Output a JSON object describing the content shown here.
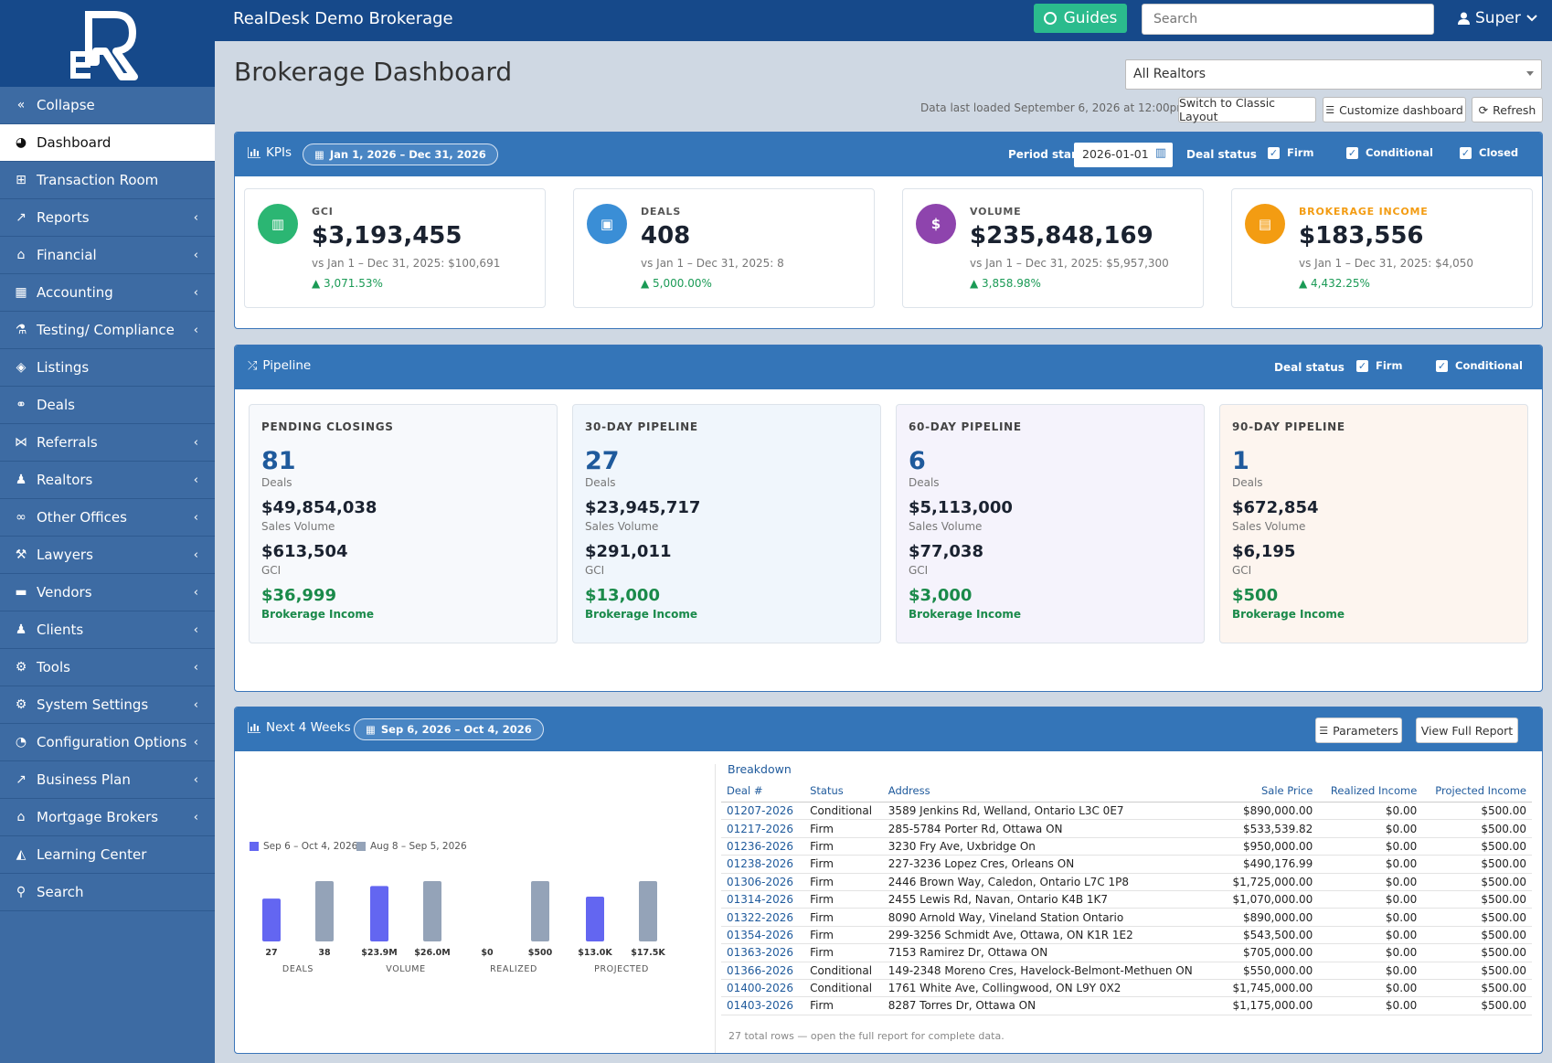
{
  "app": {
    "brand": "RealDesk Demo Brokerage",
    "guides_label": "Guides",
    "search_placeholder": "Search",
    "user_name": "Super"
  },
  "sidebar": {
    "items": [
      {
        "label": "Collapse",
        "icon": "double-chevron-left-icon",
        "chevron": false
      },
      {
        "label": "Dashboard",
        "icon": "dashboard-gauge-icon",
        "chevron": false,
        "active": true
      },
      {
        "label": "Transaction Room",
        "icon": "sitemap-icon",
        "chevron": false
      },
      {
        "label": "Reports",
        "icon": "line-chart-icon",
        "chevron": true
      },
      {
        "label": "Financial",
        "icon": "bank-icon",
        "chevron": true
      },
      {
        "label": "Accounting",
        "icon": "calculator-icon",
        "chevron": true
      },
      {
        "label": "Testing/ Compliance",
        "icon": "flask-icon",
        "chevron": true
      },
      {
        "label": "Listings",
        "icon": "tags-icon",
        "chevron": false
      },
      {
        "label": "Deals",
        "icon": "handshake-icon",
        "chevron": false
      },
      {
        "label": "Referrals",
        "icon": "share-icon",
        "chevron": true
      },
      {
        "label": "Realtors",
        "icon": "users-icon",
        "chevron": true
      },
      {
        "label": "Other Offices",
        "icon": "link-icon",
        "chevron": true
      },
      {
        "label": "Lawyers",
        "icon": "gavel-icon",
        "chevron": true
      },
      {
        "label": "Vendors",
        "icon": "truck-icon",
        "chevron": true
      },
      {
        "label": "Clients",
        "icon": "users-icon",
        "chevron": true
      },
      {
        "label": "Tools",
        "icon": "wrench-icon",
        "chevron": true
      },
      {
        "label": "System Settings",
        "icon": "gear-icon",
        "chevron": true
      },
      {
        "label": "Configuration Options",
        "icon": "dial-icon",
        "chevron": true
      },
      {
        "label": "Business Plan",
        "icon": "line-chart-icon",
        "chevron": true
      },
      {
        "label": "Mortgage Brokers",
        "icon": "bank-icon",
        "chevron": true
      },
      {
        "label": "Learning Center",
        "icon": "graduation-cap-icon",
        "chevron": false
      },
      {
        "label": "Search",
        "icon": "search-icon",
        "chevron": false
      }
    ]
  },
  "header": {
    "title": "Brokerage Dashboard",
    "realtor_filter": "All Realtors",
    "last_loaded": "Data last loaded September 6, 2026 at 12:00pm",
    "switch_label": "Switch to Classic Layout",
    "customize_label": "Customize dashboard",
    "refresh_label": "Refresh"
  },
  "kpis": {
    "title": "KPIs",
    "range": "Jan 1, 2026 – Dec 31, 2026",
    "period_start_label": "Period start",
    "period_start_value": "2026-01-01",
    "deal_status_label": "Deal status",
    "statuses": [
      "Firm",
      "Conditional",
      "Closed"
    ],
    "cards": [
      {
        "label": "GCI",
        "value": "$3,193,455",
        "comparison": "vs Jan 1 – Dec 31, 2025: $100,691",
        "change": "▲ 3,071.53%",
        "color": "#2bb673",
        "icon": "bar-chart-icon"
      },
      {
        "label": "DEALS",
        "value": "408",
        "comparison": "vs Jan 1 – Dec 31, 2025: 8",
        "change": "▲ 5,000.00%",
        "color": "#3a8ed6",
        "icon": "briefcase-icon"
      },
      {
        "label": "VOLUME",
        "value": "$235,848,169",
        "comparison": "vs Jan 1 – Dec 31, 2025: $5,957,300",
        "change": "▲ 3,858.98%",
        "color": "#8e44ad",
        "icon": "dollar-icon"
      },
      {
        "label": "BROKERAGE INCOME",
        "value": "$183,556",
        "comparison": "vs Jan 1 – Dec 31, 2025: $4,050",
        "change": "▲ 4,432.25%",
        "color": "#f39c12",
        "icon": "building-icon"
      }
    ]
  },
  "pipeline": {
    "title": "Pipeline",
    "deal_status_label": "Deal status",
    "statuses": [
      "Firm",
      "Conditional"
    ],
    "deals_label": "Deals",
    "volume_label": "Sales Volume",
    "gci_label": "GCI",
    "income_label": "Brokerage Income",
    "cards": [
      {
        "label": "PENDING CLOSINGS",
        "deals": "81",
        "volume": "$49,854,038",
        "gci": "$613,504",
        "income": "$36,999",
        "bg": "#f7f9fc"
      },
      {
        "label": "30-DAY PIPELINE",
        "deals": "27",
        "volume": "$23,945,717",
        "gci": "$291,011",
        "income": "$13,000",
        "bg": "#f0f6fc"
      },
      {
        "label": "60-DAY PIPELINE",
        "deals": "6",
        "volume": "$5,113,000",
        "gci": "$77,038",
        "income": "$3,000",
        "bg": "#f5f3fc"
      },
      {
        "label": "90-DAY PIPELINE",
        "deals": "1",
        "volume": "$672,854",
        "gci": "$6,195",
        "income": "$500",
        "bg": "#fdf5ef"
      }
    ]
  },
  "weeks": {
    "title": "Next 4 Weeks",
    "range": "Sep 6, 2026 – Oct 4, 2026",
    "parameters_label": "Parameters",
    "full_report_label": "View Full Report",
    "breakdown_title": "Breakdown",
    "columns": [
      "Deal #",
      "Status",
      "Address",
      "Sale Price",
      "Realized Income",
      "Projected Income"
    ],
    "rows": [
      [
        "01207-2026",
        "Conditional",
        "3589 Jenkins Rd, Welland, Ontario L3C 0E7",
        "$890,000.00",
        "$0.00",
        "$500.00"
      ],
      [
        "01217-2026",
        "Firm",
        "285-5784 Porter Rd, Ottawa ON",
        "$533,539.82",
        "$0.00",
        "$500.00"
      ],
      [
        "01236-2026",
        "Firm",
        "3230 Fry Ave, Uxbridge On",
        "$950,000.00",
        "$0.00",
        "$500.00"
      ],
      [
        "01238-2026",
        "Firm",
        "227-3236 Lopez Cres, Orleans ON",
        "$490,176.99",
        "$0.00",
        "$500.00"
      ],
      [
        "01306-2026",
        "Firm",
        "2446 Brown Way, Caledon, Ontario L7C 1P8",
        "$1,725,000.00",
        "$0.00",
        "$500.00"
      ],
      [
        "01314-2026",
        "Firm",
        "2455 Lewis Rd, Navan, Ontario K4B 1K7",
        "$1,070,000.00",
        "$0.00",
        "$500.00"
      ],
      [
        "01322-2026",
        "Firm",
        "8090 Arnold Way, Vineland Station Ontario",
        "$890,000.00",
        "$0.00",
        "$500.00"
      ],
      [
        "01354-2026",
        "Firm",
        "299-3256 Schmidt Ave, Ottawa, ON K1R 1E2",
        "$543,500.00",
        "$0.00",
        "$500.00"
      ],
      [
        "01363-2026",
        "Firm",
        "7153 Ramirez Dr, Ottawa ON",
        "$705,000.00",
        "$0.00",
        "$500.00"
      ],
      [
        "01366-2026",
        "Conditional",
        "149-2348 Moreno Cres, Havelock-Belmont-Methuen ON",
        "$550,000.00",
        "$0.00",
        "$500.00"
      ],
      [
        "01400-2026",
        "Conditional",
        "1761 White Ave, Collingwood, ON L9Y 0X2",
        "$1,745,000.00",
        "$0.00",
        "$500.00"
      ],
      [
        "01403-2026",
        "Firm",
        "8287 Torres Dr, Ottawa ON",
        "$1,175,000.00",
        "$0.00",
        "$500.00"
      ]
    ],
    "footer": "27 total rows — open the full report for complete data."
  },
  "chart_data": {
    "type": "bar",
    "categories": [
      "DEALS",
      "VOLUME",
      "REALIZED",
      "PROJECTED"
    ],
    "series": [
      {
        "name": "Sep 6 – Oct 4, 2026",
        "color": "#6366f1",
        "values": [
          27,
          23900000,
          0,
          13000
        ],
        "labels": [
          "27",
          "$23.9M",
          "$0",
          "$13.0K"
        ]
      },
      {
        "name": "Aug 8 – Sep 5, 2026",
        "color": "#94a3b8",
        "values": [
          38,
          26000000,
          500,
          17500
        ],
        "labels": [
          "38",
          "$26.0M",
          "$500",
          "$17.5K"
        ]
      }
    ],
    "normalization": "per category",
    "legend": "top-left",
    "grid": false
  }
}
